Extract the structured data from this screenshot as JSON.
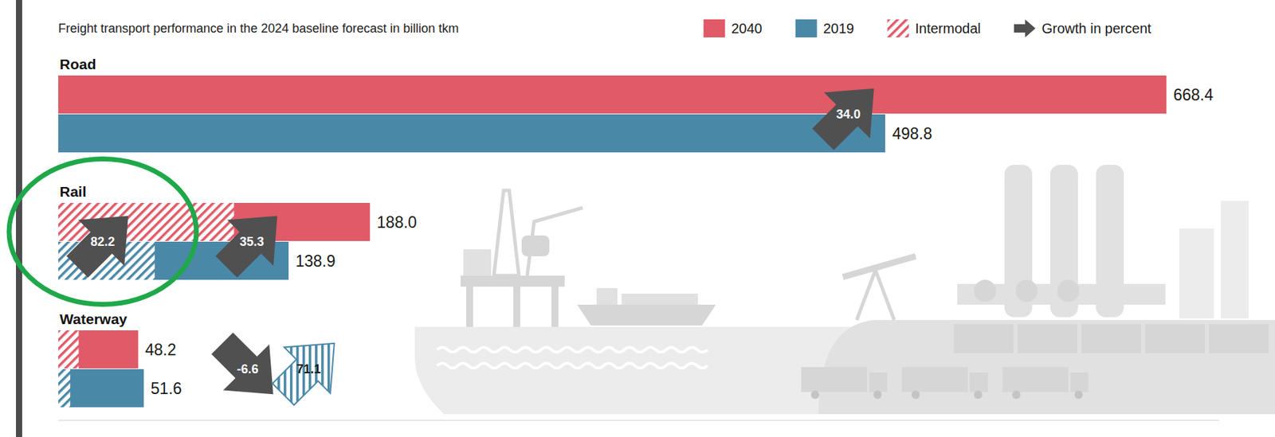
{
  "chart_data": {
    "type": "bar",
    "orientation": "horizontal",
    "title": "Freight transport performance in the 2024 baseline forecast in billion tkm",
    "categories": [
      "Road",
      "Rail",
      "Waterway"
    ],
    "series": [
      {
        "name": "2040",
        "color": "#e05a67",
        "values": [
          668.4,
          188.0,
          48.2
        ],
        "value_labels": [
          "668.4",
          "188.0",
          "48.2"
        ],
        "intermodal": [
          null,
          106.0,
          12.3
        ]
      },
      {
        "name": "2019",
        "color": "#4a88a8",
        "values": [
          498.8,
          138.9,
          51.6
        ],
        "value_labels": [
          "498.8",
          "138.9",
          "51.6"
        ],
        "intermodal": [
          null,
          58.2,
          7.2
        ]
      }
    ],
    "intermodal_label": "Intermodal",
    "growth": {
      "name": "Growth in percent",
      "color": "#505050",
      "values": [
        34.0,
        35.3,
        -6.6
      ],
      "value_labels": [
        "34.0",
        "35.3",
        "-6.6"
      ],
      "intermodal_values": [
        null,
        82.2,
        71.1
      ],
      "intermodal_value_labels": [
        null,
        "82.2",
        "71.1"
      ]
    },
    "xlim": [
      0,
      700
    ],
    "xticks": [],
    "tick_labels": false,
    "data_labels": true,
    "legend": "top-right",
    "grid": false
  }
}
